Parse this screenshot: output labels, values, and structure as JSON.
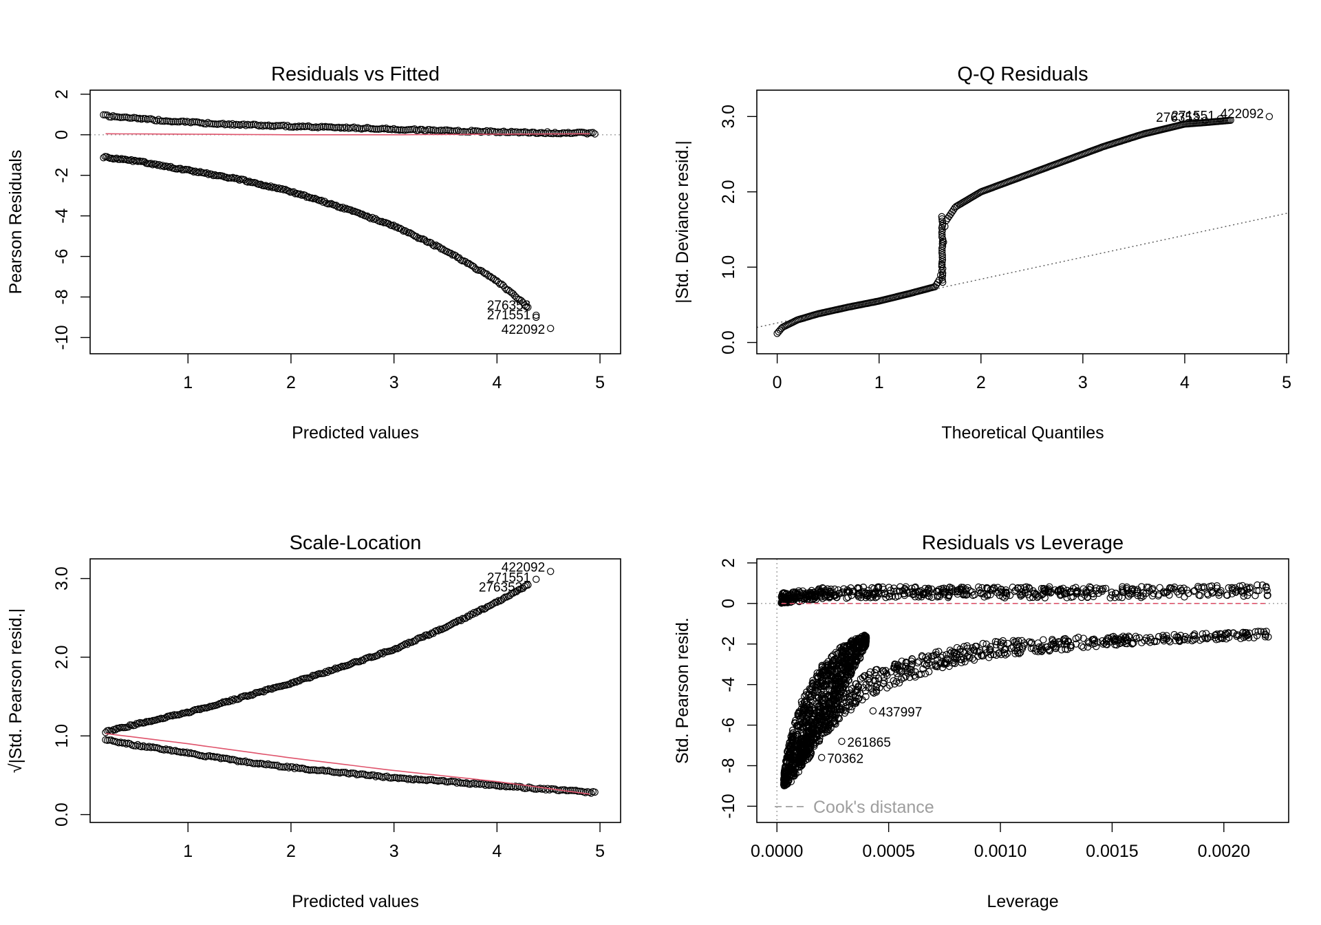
{
  "chart_data": [
    {
      "type": "scatter",
      "title": "Residuals vs Fitted",
      "xlabel": "Predicted values",
      "ylabel": "Pearson Residuals",
      "xlim": [
        0.05,
        5.2
      ],
      "ylim": [
        -10.8,
        2.2
      ],
      "xticks": [
        1,
        2,
        3,
        4,
        5
      ],
      "xtick_labels": [
        "1",
        "2",
        "3",
        "4",
        "5"
      ],
      "yticks": [
        2,
        0,
        -2,
        -4,
        -6,
        -8,
        -10
      ],
      "ytick_labels": [
        "2",
        "0",
        "-2",
        "-4",
        "-6",
        "-8",
        "-10"
      ],
      "series": [
        {
          "values_x": [
            0.18,
            0.5,
            1.0,
            1.5,
            2.0,
            2.5,
            3.0,
            3.5,
            4.0,
            4.5,
            4.95
          ],
          "values_y": [
            0.95,
            0.8,
            0.62,
            0.5,
            0.42,
            0.35,
            0.28,
            0.2,
            0.15,
            0.1,
            0.08
          ]
        },
        {
          "values_x": [
            0.18,
            0.5,
            1.0,
            1.5,
            2.0,
            2.5,
            3.0,
            3.5,
            4.0,
            4.3
          ],
          "values_y": [
            -1.1,
            -1.3,
            -1.75,
            -2.2,
            -2.8,
            -3.6,
            -4.5,
            -5.7,
            -7.2,
            -8.5
          ]
        }
      ],
      "smoother": {
        "values_x": [
          0.2,
          1,
          2,
          3,
          4,
          4.9
        ],
        "values_y": [
          0.05,
          0.03,
          0.0,
          0.0,
          0.03,
          0.05
        ],
        "color": "#DF536B"
      },
      "reference_line": 0,
      "labeled_points": [
        {
          "x": 4.38,
          "y": -8.9,
          "label": "276353"
        },
        {
          "x": 4.38,
          "y": -9.0,
          "label": "271551"
        },
        {
          "x": 4.52,
          "y": -9.55,
          "label": "422092"
        }
      ]
    },
    {
      "type": "scatter",
      "title": "Q-Q Residuals",
      "xlabel": "Theoretical Quantiles",
      "ylabel": "|Std. Deviance resid.|",
      "xlim": [
        -0.2,
        5.02
      ],
      "ylim": [
        -0.15,
        3.35
      ],
      "xticks": [
        0,
        1,
        2,
        3,
        4,
        5
      ],
      "xtick_labels": [
        "0",
        "1",
        "2",
        "3",
        "4",
        "5"
      ],
      "yticks": [
        0.0,
        1.0,
        2.0,
        3.0
      ],
      "ytick_labels": [
        "0.0",
        "1.0",
        "2.0",
        "3.0"
      ],
      "curve": {
        "values_x": [
          0.0,
          0.05,
          0.2,
          0.4,
          0.7,
          1.0,
          1.3,
          1.55,
          1.6,
          1.62,
          1.63,
          1.65,
          1.75,
          2.0,
          2.4,
          2.8,
          3.2,
          3.6,
          4.0,
          4.2,
          4.45
        ],
        "values_y": [
          0.12,
          0.2,
          0.3,
          0.38,
          0.47,
          0.55,
          0.65,
          0.74,
          0.85,
          1.05,
          1.3,
          1.6,
          1.8,
          2.0,
          2.2,
          2.4,
          2.6,
          2.77,
          2.9,
          2.92,
          2.95
        ]
      },
      "reference_line": {
        "x": [
          -0.2,
          5.02
        ],
        "y": [
          0.2,
          1.72
        ]
      },
      "labeled_points": [
        {
          "x": 4.83,
          "y": 3.0,
          "label": "422092"
        },
        {
          "x": 4.35,
          "y": 2.97,
          "label": "271551"
        },
        {
          "x": 4.2,
          "y": 2.95,
          "label": "276353"
        }
      ]
    },
    {
      "type": "scatter",
      "title": "Scale-Location",
      "xlabel": "Predicted values",
      "ylabel": "√|Std. Pearson resid.|",
      "xlim": [
        0.05,
        5.2
      ],
      "ylim": [
        -0.1,
        3.25
      ],
      "xticks": [
        1,
        2,
        3,
        4,
        5
      ],
      "xtick_labels": [
        "1",
        "2",
        "3",
        "4",
        "5"
      ],
      "yticks": [
        0.0,
        1.0,
        2.0,
        3.0
      ],
      "ytick_labels": [
        "0.0",
        "1.0",
        "2.0",
        "3.0"
      ],
      "series": [
        {
          "values_x": [
            0.2,
            0.5,
            1.0,
            1.5,
            2.0,
            2.5,
            3.0,
            3.5,
            4.0,
            4.3
          ],
          "values_y": [
            1.05,
            1.15,
            1.3,
            1.48,
            1.67,
            1.88,
            2.1,
            2.38,
            2.7,
            2.92
          ]
        },
        {
          "values_x": [
            0.2,
            0.5,
            1.0,
            1.5,
            2.0,
            2.5,
            3.0,
            3.5,
            4.0,
            4.5,
            4.95
          ],
          "values_y": [
            0.95,
            0.88,
            0.78,
            0.68,
            0.6,
            0.53,
            0.47,
            0.42,
            0.37,
            0.32,
            0.28
          ]
        }
      ],
      "smoother": {
        "values_x": [
          0.2,
          1,
          2,
          3,
          4,
          4.9
        ],
        "values_y": [
          1.03,
          0.9,
          0.72,
          0.56,
          0.42,
          0.26
        ],
        "color": "#DF536B"
      },
      "labeled_points": [
        {
          "x": 4.52,
          "y": 3.09,
          "label": "422092"
        },
        {
          "x": 4.38,
          "y": 2.99,
          "label": "271551"
        },
        {
          "x": 4.3,
          "y": 2.92,
          "label": "276353"
        }
      ]
    },
    {
      "type": "scatter",
      "title": "Residuals vs Leverage",
      "xlabel": "Leverage",
      "ylabel": "Std. Pearson resid.",
      "xlim": [
        -9e-05,
        0.00229
      ],
      "ylim": [
        -10.8,
        2.2
      ],
      "xticks": [
        0.0,
        0.0005,
        0.001,
        0.0015,
        0.002
      ],
      "xtick_labels": [
        "0.0000",
        "0.0005",
        "0.0010",
        "0.0015",
        "0.0020"
      ],
      "yticks": [
        2,
        0,
        -2,
        -4,
        -6,
        -8,
        -10
      ],
      "ytick_labels": [
        "2",
        "0",
        "-2",
        "-4",
        "-6",
        "-8",
        "-10"
      ],
      "series": [
        {
          "values_x": [
            2e-05,
            0.0002,
            0.0005,
            0.001,
            0.0015,
            0.002,
            0.0022
          ],
          "values_y": [
            0.25,
            0.5,
            0.55,
            0.55,
            0.55,
            0.6,
            0.65
          ]
        },
        {
          "values_x": [
            3e-05,
            5e-05,
            0.0001,
            0.0002,
            0.0003,
            0.0004
          ],
          "values_y": [
            -8.5,
            -7.0,
            -5.0,
            -3.0,
            -2.0,
            -1.5
          ]
        },
        {
          "values_x": [
            0.0001,
            0.0002,
            0.0004,
            0.0006,
            0.0008,
            0.001,
            0.0014,
            0.0018,
            0.0022
          ],
          "values_y": [
            -7.5,
            -6.0,
            -4.0,
            -3.2,
            -2.6,
            -2.2,
            -1.9,
            -1.7,
            -1.5
          ]
        }
      ],
      "reference_line": 0,
      "smoother": {
        "values_x": [
          2e-05,
          0.0022
        ],
        "values_y": [
          0.0,
          0.0
        ],
        "color": "#DF536B"
      },
      "labeled_points": [
        {
          "x": 0.00043,
          "y": -5.3,
          "label": "437997"
        },
        {
          "x": 0.00029,
          "y": -6.8,
          "label": "261865"
        },
        {
          "x": 0.0002,
          "y": -7.6,
          "label": "70362"
        }
      ],
      "legend": {
        "label": "Cook's distance",
        "position": "bottom-left"
      }
    }
  ]
}
